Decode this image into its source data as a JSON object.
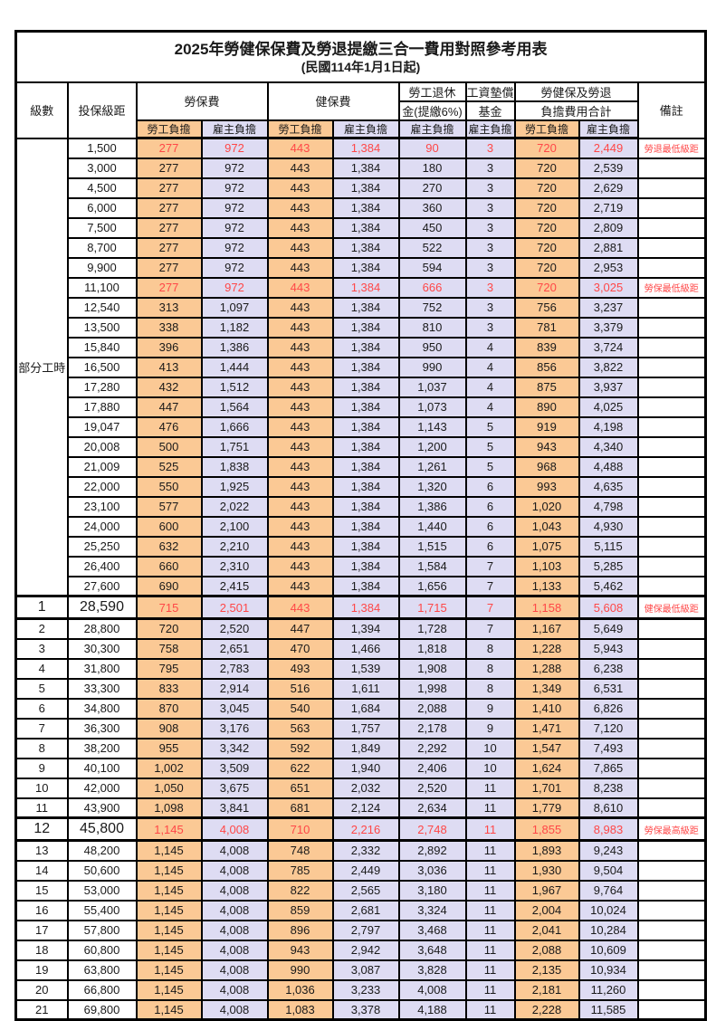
{
  "title": "2025年勞健保保費及勞退提繳三合一費用對照參考用表",
  "subtitle": "(民國114年1月1日起)",
  "colors": {
    "employee_bg": "#fbc995",
    "employer_bg": "#dedcf3",
    "highlight_red": "#ff4747",
    "border": "#000000",
    "text": "#1a1a1a"
  },
  "header": {
    "level": "級數",
    "bracket": "投保級距",
    "labor_insurance": "勞保費",
    "health_insurance": "健保費",
    "pension_line1": "勞工退休",
    "pension_line2": "金(提繳6%)",
    "wage_fund_line1": "工資墊償",
    "wage_fund_line2": "基金",
    "total_line1": "勞健保及勞退",
    "total_line2": "負擔費用合計",
    "employee": "勞工負擔",
    "employer": "雇主負擔",
    "remark": "備註"
  },
  "group": {
    "label": "部分工時",
    "rowspan": 23
  },
  "rows": [
    {
      "bracket": "1,500",
      "values": [
        "277",
        "972",
        "443",
        "1,384",
        "90",
        "3",
        "720",
        "2,449"
      ],
      "remark": "勞退最低級距",
      "hl": true
    },
    {
      "bracket": "3,000",
      "values": [
        "277",
        "972",
        "443",
        "1,384",
        "180",
        "3",
        "720",
        "2,539"
      ],
      "remark": ""
    },
    {
      "bracket": "4,500",
      "values": [
        "277",
        "972",
        "443",
        "1,384",
        "270",
        "3",
        "720",
        "2,629"
      ],
      "remark": ""
    },
    {
      "bracket": "6,000",
      "values": [
        "277",
        "972",
        "443",
        "1,384",
        "360",
        "3",
        "720",
        "2,719"
      ],
      "remark": ""
    },
    {
      "bracket": "7,500",
      "values": [
        "277",
        "972",
        "443",
        "1,384",
        "450",
        "3",
        "720",
        "2,809"
      ],
      "remark": ""
    },
    {
      "bracket": "8,700",
      "values": [
        "277",
        "972",
        "443",
        "1,384",
        "522",
        "3",
        "720",
        "2,881"
      ],
      "remark": ""
    },
    {
      "bracket": "9,900",
      "values": [
        "277",
        "972",
        "443",
        "1,384",
        "594",
        "3",
        "720",
        "2,953"
      ],
      "remark": ""
    },
    {
      "bracket": "11,100",
      "values": [
        "277",
        "972",
        "443",
        "1,384",
        "666",
        "3",
        "720",
        "3,025"
      ],
      "remark": "勞保最低級距",
      "hl": true
    },
    {
      "bracket": "12,540",
      "values": [
        "313",
        "1,097",
        "443",
        "1,384",
        "752",
        "3",
        "756",
        "3,237"
      ],
      "remark": ""
    },
    {
      "bracket": "13,500",
      "values": [
        "338",
        "1,182",
        "443",
        "1,384",
        "810",
        "3",
        "781",
        "3,379"
      ],
      "remark": ""
    },
    {
      "bracket": "15,840",
      "values": [
        "396",
        "1,386",
        "443",
        "1,384",
        "950",
        "4",
        "839",
        "3,724"
      ],
      "remark": ""
    },
    {
      "bracket": "16,500",
      "values": [
        "413",
        "1,444",
        "443",
        "1,384",
        "990",
        "4",
        "856",
        "3,822"
      ],
      "remark": ""
    },
    {
      "bracket": "17,280",
      "values": [
        "432",
        "1,512",
        "443",
        "1,384",
        "1,037",
        "4",
        "875",
        "3,937"
      ],
      "remark": ""
    },
    {
      "bracket": "17,880",
      "values": [
        "447",
        "1,564",
        "443",
        "1,384",
        "1,073",
        "4",
        "890",
        "4,025"
      ],
      "remark": ""
    },
    {
      "bracket": "19,047",
      "values": [
        "476",
        "1,666",
        "443",
        "1,384",
        "1,143",
        "5",
        "919",
        "4,198"
      ],
      "remark": ""
    },
    {
      "bracket": "20,008",
      "values": [
        "500",
        "1,751",
        "443",
        "1,384",
        "1,200",
        "5",
        "943",
        "4,340"
      ],
      "remark": ""
    },
    {
      "bracket": "21,009",
      "values": [
        "525",
        "1,838",
        "443",
        "1,384",
        "1,261",
        "5",
        "968",
        "4,488"
      ],
      "remark": ""
    },
    {
      "bracket": "22,000",
      "values": [
        "550",
        "1,925",
        "443",
        "1,384",
        "1,320",
        "6",
        "993",
        "4,635"
      ],
      "remark": ""
    },
    {
      "bracket": "23,100",
      "values": [
        "577",
        "2,022",
        "443",
        "1,384",
        "1,386",
        "6",
        "1,020",
        "4,798"
      ],
      "remark": ""
    },
    {
      "bracket": "24,000",
      "values": [
        "600",
        "2,100",
        "443",
        "1,384",
        "1,440",
        "6",
        "1,043",
        "4,930"
      ],
      "remark": ""
    },
    {
      "bracket": "25,250",
      "values": [
        "632",
        "2,210",
        "443",
        "1,384",
        "1,515",
        "6",
        "1,075",
        "5,115"
      ],
      "remark": ""
    },
    {
      "bracket": "26,400",
      "values": [
        "660",
        "2,310",
        "443",
        "1,384",
        "1,584",
        "7",
        "1,103",
        "5,285"
      ],
      "remark": ""
    },
    {
      "bracket": "27,600",
      "values": [
        "690",
        "2,415",
        "443",
        "1,384",
        "1,656",
        "7",
        "1,133",
        "5,462"
      ],
      "remark": ""
    },
    {
      "level": "1",
      "bracket": "28,590",
      "values": [
        "715",
        "2,501",
        "443",
        "1,384",
        "1,715",
        "7",
        "1,158",
        "5,608"
      ],
      "remark": "健保最低級距",
      "hl": true,
      "big": true,
      "thick": true
    },
    {
      "level": "2",
      "bracket": "28,800",
      "values": [
        "720",
        "2,520",
        "447",
        "1,394",
        "1,728",
        "7",
        "1,167",
        "5,649"
      ],
      "remark": ""
    },
    {
      "level": "3",
      "bracket": "30,300",
      "values": [
        "758",
        "2,651",
        "470",
        "1,466",
        "1,818",
        "8",
        "1,228",
        "5,943"
      ],
      "remark": ""
    },
    {
      "level": "4",
      "bracket": "31,800",
      "values": [
        "795",
        "2,783",
        "493",
        "1,539",
        "1,908",
        "8",
        "1,288",
        "6,238"
      ],
      "remark": ""
    },
    {
      "level": "5",
      "bracket": "33,300",
      "values": [
        "833",
        "2,914",
        "516",
        "1,611",
        "1,998",
        "8",
        "1,349",
        "6,531"
      ],
      "remark": ""
    },
    {
      "level": "6",
      "bracket": "34,800",
      "values": [
        "870",
        "3,045",
        "540",
        "1,684",
        "2,088",
        "9",
        "1,410",
        "6,826"
      ],
      "remark": ""
    },
    {
      "level": "7",
      "bracket": "36,300",
      "values": [
        "908",
        "3,176",
        "563",
        "1,757",
        "2,178",
        "9",
        "1,471",
        "7,120"
      ],
      "remark": ""
    },
    {
      "level": "8",
      "bracket": "38,200",
      "values": [
        "955",
        "3,342",
        "592",
        "1,849",
        "2,292",
        "10",
        "1,547",
        "7,493"
      ],
      "remark": ""
    },
    {
      "level": "9",
      "bracket": "40,100",
      "values": [
        "1,002",
        "3,509",
        "622",
        "1,940",
        "2,406",
        "10",
        "1,624",
        "7,865"
      ],
      "remark": ""
    },
    {
      "level": "10",
      "bracket": "42,000",
      "values": [
        "1,050",
        "3,675",
        "651",
        "2,032",
        "2,520",
        "11",
        "1,701",
        "8,238"
      ],
      "remark": ""
    },
    {
      "level": "11",
      "bracket": "43,900",
      "values": [
        "1,098",
        "3,841",
        "681",
        "2,124",
        "2,634",
        "11",
        "1,779",
        "8,610"
      ],
      "remark": ""
    },
    {
      "level": "12",
      "bracket": "45,800",
      "values": [
        "1,145",
        "4,008",
        "710",
        "2,216",
        "2,748",
        "11",
        "1,855",
        "8,983"
      ],
      "remark": "勞保最高級距",
      "hl": true,
      "big": true,
      "thick": true
    },
    {
      "level": "13",
      "bracket": "48,200",
      "values": [
        "1,145",
        "4,008",
        "748",
        "2,332",
        "2,892",
        "11",
        "1,893",
        "9,243"
      ],
      "remark": ""
    },
    {
      "level": "14",
      "bracket": "50,600",
      "values": [
        "1,145",
        "4,008",
        "785",
        "2,449",
        "3,036",
        "11",
        "1,930",
        "9,504"
      ],
      "remark": ""
    },
    {
      "level": "15",
      "bracket": "53,000",
      "values": [
        "1,145",
        "4,008",
        "822",
        "2,565",
        "3,180",
        "11",
        "1,967",
        "9,764"
      ],
      "remark": ""
    },
    {
      "level": "16",
      "bracket": "55,400",
      "values": [
        "1,145",
        "4,008",
        "859",
        "2,681",
        "3,324",
        "11",
        "2,004",
        "10,024"
      ],
      "remark": ""
    },
    {
      "level": "17",
      "bracket": "57,800",
      "values": [
        "1,145",
        "4,008",
        "896",
        "2,797",
        "3,468",
        "11",
        "2,041",
        "10,284"
      ],
      "remark": ""
    },
    {
      "level": "18",
      "bracket": "60,800",
      "values": [
        "1,145",
        "4,008",
        "943",
        "2,942",
        "3,648",
        "11",
        "2,088",
        "10,609"
      ],
      "remark": ""
    },
    {
      "level": "19",
      "bracket": "63,800",
      "values": [
        "1,145",
        "4,008",
        "990",
        "3,087",
        "3,828",
        "11",
        "2,135",
        "10,934"
      ],
      "remark": ""
    },
    {
      "level": "20",
      "bracket": "66,800",
      "values": [
        "1,145",
        "4,008",
        "1,036",
        "3,233",
        "4,008",
        "11",
        "2,181",
        "11,260"
      ],
      "remark": ""
    },
    {
      "level": "21",
      "bracket": "69,800",
      "values": [
        "1,145",
        "4,008",
        "1,083",
        "3,378",
        "4,188",
        "11",
        "2,228",
        "11,585"
      ],
      "remark": ""
    }
  ]
}
